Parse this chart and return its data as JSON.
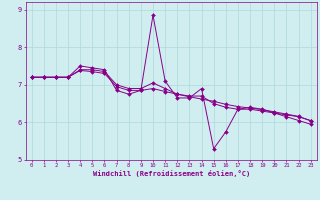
{
  "xlabel": "Windchill (Refroidissement éolien,°C)",
  "xlim": [
    -0.5,
    23.5
  ],
  "ylim": [
    5,
    9.2
  ],
  "xticks": [
    0,
    1,
    2,
    3,
    4,
    5,
    6,
    7,
    8,
    9,
    10,
    11,
    12,
    13,
    14,
    15,
    16,
    17,
    18,
    19,
    20,
    21,
    22,
    23
  ],
  "yticks": [
    5,
    6,
    7,
    8,
    9
  ],
  "bg_color": "#d0eef0",
  "line_color": "#880088",
  "grid_color": "#b0d8dc",
  "series": [
    [
      7.2,
      7.2,
      7.2,
      7.2,
      7.5,
      7.45,
      7.4,
      6.85,
      6.75,
      6.85,
      8.85,
      7.1,
      6.65,
      6.65,
      6.9,
      5.3,
      5.75,
      6.35,
      6.4,
      6.35,
      6.25,
      6.15,
      6.05,
      5.95
    ],
    [
      7.2,
      7.2,
      7.2,
      7.2,
      7.4,
      7.4,
      7.35,
      7.0,
      6.9,
      6.9,
      7.05,
      6.9,
      6.75,
      6.7,
      6.7,
      6.5,
      6.4,
      6.35,
      6.35,
      6.3,
      6.25,
      6.2,
      6.15,
      6.05
    ],
    [
      7.2,
      7.2,
      7.2,
      7.2,
      7.38,
      7.35,
      7.3,
      6.95,
      6.85,
      6.85,
      6.9,
      6.82,
      6.75,
      6.68,
      6.62,
      6.56,
      6.48,
      6.42,
      6.38,
      6.34,
      6.28,
      6.22,
      6.16,
      6.04
    ]
  ]
}
